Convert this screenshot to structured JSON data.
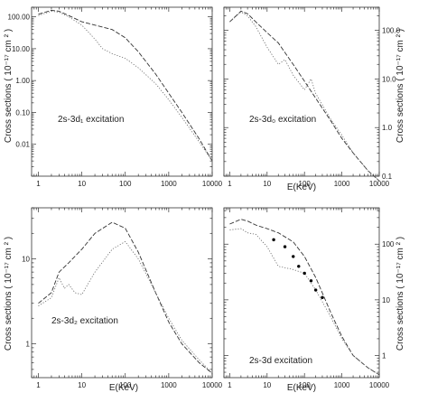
{
  "chart_data": [
    {
      "type": "line",
      "ylabel": "Cross sections ( 10⁻¹⁷ cm ² )",
      "xlabel": "",
      "annotation": "2s-3d₁ excitation",
      "xscale": "log",
      "yscale": "log",
      "xlim": [
        0.7,
        10000
      ],
      "ylim": [
        0.001,
        200
      ],
      "xticks": [
        1,
        10,
        100,
        1000,
        10000
      ],
      "xtick_labels": [
        "1",
        "10",
        "100",
        "1000",
        "10000"
      ],
      "yticks": [
        0.01,
        0.1,
        1,
        10,
        100
      ],
      "ytick_labels": [
        "0.01",
        "0.10",
        "1.00",
        "10.00",
        "100.00"
      ],
      "series": [
        {
          "style": "dashed",
          "x": [
            1,
            2,
            3,
            5,
            10,
            20,
            50,
            100,
            200,
            500,
            1000,
            2000,
            5000,
            10000
          ],
          "y": [
            120,
            160,
            150,
            110,
            70,
            55,
            40,
            22,
            8,
            1.6,
            0.4,
            0.1,
            0.015,
            0.003
          ]
        },
        {
          "style": "dotted",
          "x": [
            1,
            2,
            3,
            5,
            10,
            20,
            30,
            50,
            100,
            200,
            500,
            1000,
            2000,
            5000,
            10000
          ],
          "y": [
            110,
            150,
            140,
            100,
            55,
            20,
            10,
            7,
            5,
            2.5,
            0.8,
            0.25,
            0.07,
            0.012,
            0.003
          ]
        }
      ]
    },
    {
      "type": "line",
      "ylabel": "Cross sections ( 10⁻¹⁷ cm ² )",
      "xlabel": "E(KeV)",
      "annotation": "2s-3d₀ excitation",
      "xscale": "log",
      "yscale": "log",
      "xlim": [
        0.7,
        10000
      ],
      "ylim": [
        0.1,
        300
      ],
      "xticks": [
        1,
        10,
        100,
        1000,
        10000
      ],
      "xtick_labels": [
        "1",
        "10",
        "100",
        "1000",
        "10000"
      ],
      "yticks": [
        0.1,
        1,
        10,
        100
      ],
      "ytick_labels": [
        "0.1",
        "1.0",
        "10.0",
        "100.0"
      ],
      "series": [
        {
          "style": "dashed",
          "x": [
            1,
            2,
            3,
            5,
            10,
            20,
            50,
            100,
            200,
            500,
            1000,
            2000,
            5000,
            10000
          ],
          "y": [
            150,
            250,
            220,
            150,
            90,
            55,
            20,
            9,
            4,
            1.4,
            0.6,
            0.3,
            0.13,
            0.08
          ]
        },
        {
          "style": "dotted",
          "x": [
            1,
            2,
            3,
            5,
            10,
            20,
            30,
            50,
            100,
            150,
            200,
            500,
            1000,
            2000,
            5000,
            10000
          ],
          "y": [
            150,
            240,
            200,
            120,
            45,
            20,
            25,
            12,
            6,
            10,
            5,
            1.5,
            0.7,
            0.3,
            0.13,
            0.08
          ]
        }
      ]
    },
    {
      "type": "line",
      "ylabel": "Cross sections ( 10⁻¹⁷ cm ² )",
      "xlabel": "E(KeV)",
      "annotation": "2s-3d₂ excitation",
      "xscale": "log",
      "yscale": "log",
      "xlim": [
        0.7,
        10000
      ],
      "ylim": [
        0.4,
        40
      ],
      "xticks": [
        1,
        10,
        100,
        1000,
        10000
      ],
      "xtick_labels": [
        "1",
        "10",
        "100",
        "1000",
        "10000"
      ],
      "yticks": [
        1,
        10
      ],
      "ytick_labels": [
        "1",
        "10"
      ],
      "series": [
        {
          "style": "dashed",
          "x": [
            1,
            2,
            3,
            5,
            10,
            20,
            50,
            100,
            200,
            500,
            1000,
            2000,
            5000,
            10000
          ],
          "y": [
            3,
            4,
            7,
            9,
            13,
            20,
            27,
            23,
            12,
            4,
            1.8,
            1,
            0.6,
            0.45
          ]
        },
        {
          "style": "dotted",
          "x": [
            1,
            2,
            3,
            4,
            5,
            7,
            10,
            20,
            50,
            100,
            200,
            500,
            1000,
            2000,
            5000,
            10000
          ],
          "y": [
            2.8,
            3.5,
            6,
            4.5,
            5,
            4,
            3.8,
            7,
            13,
            16,
            10,
            4,
            2,
            1.1,
            0.65,
            0.45
          ]
        }
      ]
    },
    {
      "type": "line",
      "ylabel": "Cross sections ( 10⁻¹⁷ cm ² )",
      "xlabel": "E(KeV)",
      "annotation": "2s-3d excitation",
      "xscale": "log",
      "yscale": "log",
      "xlim": [
        0.7,
        10000
      ],
      "ylim": [
        0.4,
        450
      ],
      "xticks": [
        1,
        10,
        100,
        1000,
        10000
      ],
      "xtick_labels": [
        "1",
        "10",
        "100",
        "1000",
        "10000"
      ],
      "yticks": [
        1,
        10,
        100
      ],
      "ytick_labels": [
        "1",
        "10",
        "100"
      ],
      "series": [
        {
          "style": "dashed",
          "x": [
            1,
            2,
            3,
            5,
            10,
            20,
            50,
            100,
            200,
            500,
            1000,
            2000,
            5000,
            10000
          ],
          "y": [
            230,
            280,
            260,
            220,
            190,
            160,
            110,
            60,
            25,
            6,
            2.2,
            1,
            0.6,
            0.45
          ]
        },
        {
          "style": "dotted",
          "x": [
            1,
            2,
            3,
            5,
            10,
            20,
            50,
            100,
            200,
            500,
            1000,
            2000,
            5000,
            10000
          ],
          "y": [
            180,
            190,
            160,
            150,
            90,
            40,
            35,
            30,
            15,
            5,
            2,
            1,
            0.6,
            0.45
          ]
        },
        {
          "style": "points",
          "x": [
            15,
            30,
            50,
            70,
            100,
            150,
            200,
            300
          ],
          "y": [
            120,
            90,
            60,
            40,
            30,
            22,
            15,
            11
          ]
        }
      ]
    }
  ]
}
